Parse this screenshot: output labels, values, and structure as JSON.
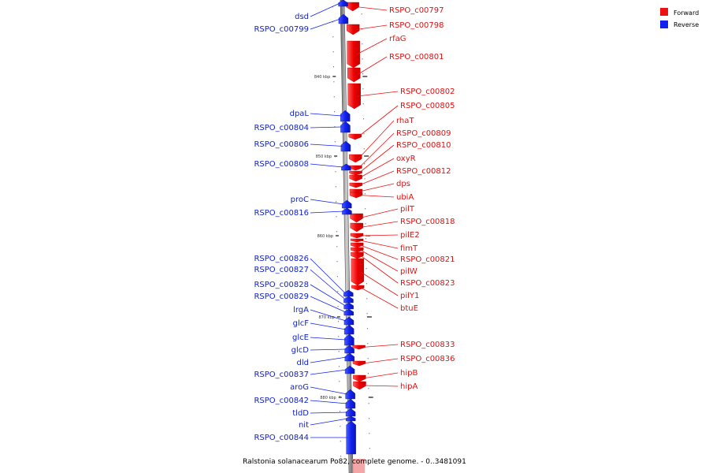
{
  "caption": "Ralstonia solanacearum Po82, complete genome. - 0..3481091",
  "legend": [
    {
      "label": "Forward",
      "color": "#ee1111"
    },
    {
      "label": "Reverse",
      "color": "#1122ee"
    }
  ],
  "ticks": [
    "840 kbp",
    "850 kbp",
    "860 kbp",
    "870 kbp",
    "880 kbp"
  ],
  "forward_genes": [
    "RSPO_c00797",
    "RSPO_c00798",
    "rfaG",
    "RSPO_c00801",
    "RSPO_c00802",
    "RSPO_c00805",
    "rhaT",
    "RSPO_c00809",
    "RSPO_c00810",
    "oxyR",
    "RSPO_c00812",
    "dps",
    "ubiA",
    "pilT",
    "RSPO_c00818",
    "pilE2",
    "fimT",
    "RSPO_c00821",
    "pilW",
    "RSPO_c00823",
    "pilY1",
    "btuE",
    "RSPO_c00833",
    "RSPO_c00836",
    "hipB",
    "hipA"
  ],
  "reverse_genes": [
    "dsd",
    "RSPO_c00799",
    "dpaL",
    "RSPO_c00804",
    "RSPO_c00806",
    "RSPO_c00808",
    "proC",
    "RSPO_c00816",
    "RSPO_c00826",
    "RSPO_c00827",
    "RSPO_c00828",
    "RSPO_c00829",
    "lrgA",
    "glcF",
    "glcE",
    "glcD",
    "dld",
    "RSPO_c00837",
    "aroG",
    "RSPO_c00842",
    "tldD",
    "nit",
    "RSPO_c00844"
  ]
}
